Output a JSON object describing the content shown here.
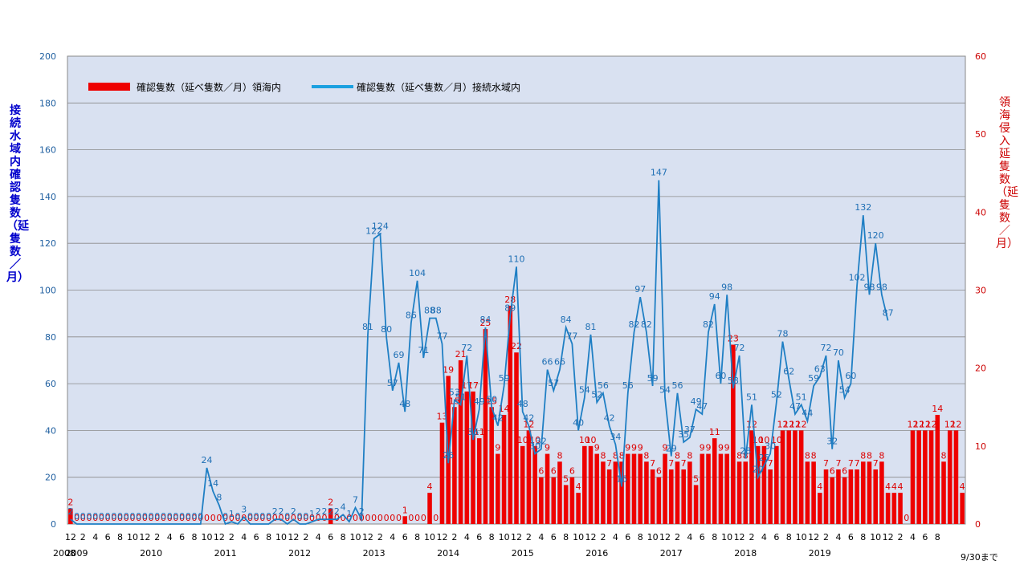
{
  "chart_data": {
    "type": "bar",
    "ylabel_left": "接続水域内確認隻数（延隻数／月）",
    "ylabel_right": "領海侵入延隻数（延隻数／月）",
    "ylim_left": [
      0,
      200
    ],
    "yticks_left": [
      0,
      20,
      40,
      60,
      80,
      100,
      120,
      140,
      160,
      180,
      200
    ],
    "ylim_right": [
      0,
      60
    ],
    "yticks_right": [
      0,
      10,
      20,
      30,
      40,
      50,
      60
    ],
    "grid": true,
    "legend_position": "top-left",
    "note": "9/30まで",
    "x_start": "2008-12",
    "month_ticks": [
      "12",
      "2",
      "4",
      "6",
      "8",
      "10",
      "12",
      "2",
      "4",
      "6",
      "8",
      "10",
      "12",
      "2",
      "4",
      "6",
      "8",
      "10",
      "12",
      "2",
      "4",
      "6",
      "8",
      "10",
      "12",
      "2",
      "4",
      "6",
      "8",
      "10",
      "12",
      "2",
      "4",
      "6",
      "8",
      "10",
      "12",
      "2",
      "4",
      "6",
      "8",
      "10",
      "12",
      "2",
      "4",
      "6",
      "8",
      "10",
      "12",
      "2",
      "4",
      "6",
      "8",
      "10",
      "12",
      "2",
      "4",
      "6",
      "8",
      "10",
      "12",
      "2",
      "4",
      "6",
      "8",
      "10",
      "12",
      "2",
      "4",
      "6",
      "8"
    ],
    "years": [
      "2008",
      "2009",
      "2010",
      "2011",
      "2012",
      "2013",
      "2014",
      "2015",
      "2016",
      "2017",
      "2018",
      "2019"
    ],
    "series": [
      {
        "name": "確認隻数（延べ隻数／月）領海内",
        "type": "bar",
        "color": "#ee0000",
        "axis": "right",
        "values": [
          2,
          0,
          0,
          0,
          0,
          0,
          0,
          0,
          0,
          0,
          0,
          0,
          0,
          0,
          0,
          0,
          0,
          0,
          0,
          0,
          0,
          0,
          0,
          0,
          0,
          0,
          0,
          0,
          0,
          0,
          0,
          0,
          0,
          0,
          0,
          0,
          0,
          0,
          0,
          0,
          0,
          0,
          2,
          0,
          0,
          0,
          0,
          0,
          0,
          0,
          0,
          0,
          0,
          0,
          1,
          0,
          0,
          0,
          4,
          0,
          13,
          19,
          15,
          21,
          17,
          17,
          11,
          25,
          15,
          9,
          14,
          28,
          22,
          10,
          12,
          10,
          6,
          9,
          6,
          8,
          5,
          6,
          4,
          10,
          10,
          9,
          8,
          7,
          8,
          8,
          9,
          9,
          9,
          8,
          7,
          6,
          9,
          7,
          8,
          7,
          8,
          5,
          9,
          9,
          11,
          9,
          9,
          23,
          8,
          8,
          12,
          10,
          10,
          7,
          10,
          12,
          12,
          12,
          12,
          8,
          8,
          4,
          7,
          6,
          7,
          6,
          7,
          7,
          8,
          8,
          7,
          8,
          4,
          4,
          4,
          0,
          12,
          12,
          12,
          12,
          14,
          8,
          12,
          12,
          4
        ]
      },
      {
        "name": "確認隻数（延べ隻数／月）接続水域内",
        "type": "line",
        "color": "#1f7fc4",
        "axis": "left",
        "values": [
          2,
          0,
          0,
          0,
          0,
          0,
          0,
          0,
          0,
          0,
          0,
          0,
          0,
          0,
          0,
          0,
          0,
          0,
          0,
          0,
          0,
          0,
          24,
          14,
          8,
          0,
          1,
          0,
          3,
          0,
          0,
          0,
          0,
          2,
          2,
          0,
          2,
          0,
          0,
          1,
          2,
          2,
          2,
          2,
          4,
          1,
          7,
          2,
          81,
          122,
          124,
          80,
          57,
          69,
          48,
          86,
          104,
          71,
          88,
          88,
          77,
          26,
          53,
          51,
          72,
          36,
          49,
          84,
          50,
          42,
          59,
          89,
          110,
          48,
          42,
          30,
          32,
          66,
          57,
          66,
          84,
          77,
          40,
          54,
          81,
          52,
          56,
          42,
          34,
          16,
          56,
          82,
          97,
          82,
          59,
          147,
          54,
          29,
          56,
          35,
          37,
          49,
          47,
          82,
          94,
          60,
          98,
          58,
          72,
          28,
          51,
          20,
          25,
          30,
          52,
          78,
          62,
          47,
          51,
          44,
          59,
          63,
          72,
          32,
          70,
          54,
          60,
          102,
          132,
          98,
          120,
          98,
          87
        ]
      }
    ]
  }
}
